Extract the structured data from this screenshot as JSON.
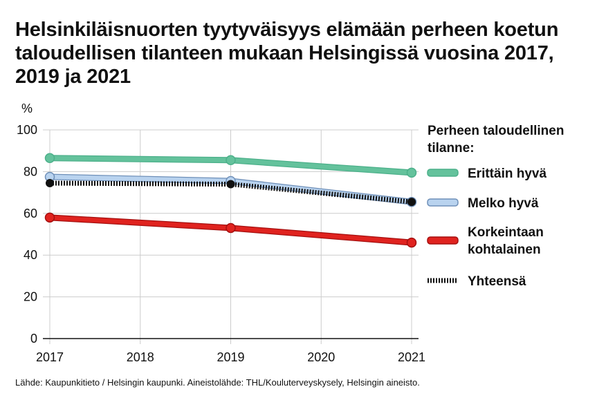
{
  "title": "Helsinkiläisnuorten tyytyväisyys elämään perheen koetun taloudellisen tilanteen mukaan Helsingissä vuosina 2017, 2019 ja 2021",
  "source": "Lähde: Kaupunkitieto / Helsingin kaupunki. Aineistolähde: THL/Kouluterveyskysely, Helsingin aineisto.",
  "chart_data": {
    "type": "line",
    "title": "Helsinkiläisnuorten tyytyväisyys elämään perheen koetun taloudellisen tilanteen mukaan Helsingissä vuosina 2017, 2019 ja 2021",
    "ylabel": "%",
    "xlabel": "",
    "ylim": [
      0,
      100
    ],
    "yticks": [
      0,
      20,
      40,
      60,
      80,
      100
    ],
    "xlim": [
      2017,
      2021
    ],
    "xticks": [
      "2017",
      "2018",
      "2019",
      "2020",
      "2021"
    ],
    "grid": true,
    "legend_title": "Perheen taloudellinen tilanne:",
    "legend_position": "right",
    "series": [
      {
        "name": "Erittäin hyvä",
        "color": "#4cb08a",
        "light": "#64c29c",
        "x": [
          2017,
          2019,
          2021
        ],
        "values": [
          86.5,
          85.5,
          79.5
        ]
      },
      {
        "name": "Melko hyvä",
        "color": "#6e8fb8",
        "light": "#b9d3ef",
        "x": [
          2017,
          2019,
          2021
        ],
        "values": [
          77.5,
          75.5,
          65.5
        ]
      },
      {
        "name": "Korkeintaan kohtalainen",
        "color": "#a50f0f",
        "light": "#e0231f",
        "x": [
          2017,
          2019,
          2021
        ],
        "values": [
          58,
          53,
          46
        ]
      },
      {
        "name": "Yhteensä",
        "color": "#111111",
        "light": "#111111",
        "style": "dotted",
        "x": [
          2017,
          2019,
          2021
        ],
        "values": [
          74.5,
          74,
          65.5
        ]
      }
    ]
  }
}
